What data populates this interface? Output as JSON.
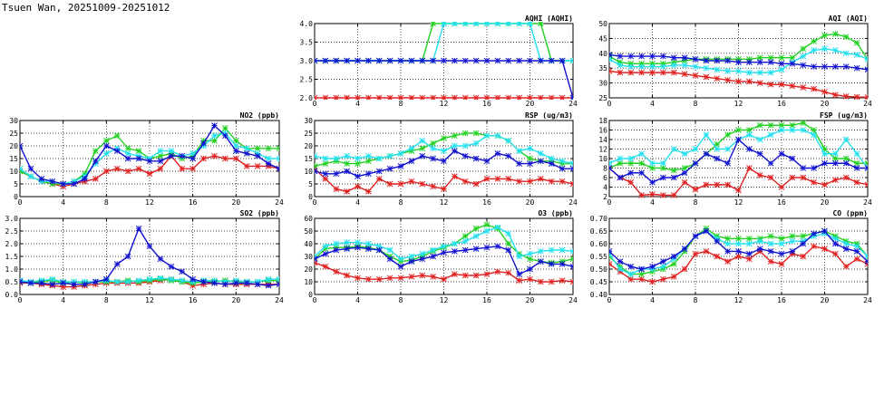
{
  "page": {
    "title": "Tsuen Wan, 20251009-20251012"
  },
  "palette": {
    "red": "#e02020",
    "blue": "#1010d0",
    "green": "#22d022",
    "cyan": "#22e0ee"
  },
  "chart_data": [
    {
      "id": "aqhi",
      "type": "line",
      "title": "AQHI (AQHI)",
      "xlim": [
        0,
        24
      ],
      "ylim": [
        2.0,
        4.0
      ],
      "xticks": [
        "0",
        "4",
        "8",
        "12",
        "16",
        "20",
        "24"
      ],
      "yticks": [
        "2.0",
        "2.5",
        "3.0",
        "3.5",
        "4.0"
      ],
      "grid": true,
      "series": [
        {
          "color": "red",
          "values": [
            2,
            2,
            2,
            2,
            2,
            2,
            2,
            2,
            2,
            2,
            2,
            2,
            2,
            2,
            2,
            2,
            2,
            2,
            2,
            2,
            2,
            2,
            2,
            2,
            2
          ]
        },
        {
          "color": "green",
          "values": [
            3,
            3,
            3,
            3,
            3,
            3,
            3,
            3,
            3,
            3,
            3,
            4,
            4,
            4,
            4,
            4,
            4,
            4,
            4,
            4,
            4,
            4,
            3,
            3,
            3
          ]
        },
        {
          "color": "cyan",
          "values": [
            3,
            3,
            3,
            3,
            3,
            3,
            3,
            3,
            3,
            3,
            3,
            3,
            4,
            4,
            4,
            4,
            4,
            4,
            4,
            4,
            4,
            3,
            3,
            3,
            3
          ]
        },
        {
          "color": "blue",
          "values": [
            3,
            3,
            3,
            3,
            3,
            3,
            3,
            3,
            3,
            3,
            3,
            3,
            3,
            3,
            3,
            3,
            3,
            3,
            3,
            3,
            3,
            3,
            3,
            3,
            2
          ]
        }
      ]
    },
    {
      "id": "aqi",
      "type": "line",
      "title": "AQI (AQI)",
      "xlim": [
        0,
        24
      ],
      "ylim": [
        25,
        50
      ],
      "xticks": [
        "0",
        "4",
        "8",
        "12",
        "16",
        "20",
        "24"
      ],
      "yticks": [
        "25",
        "30",
        "35",
        "40",
        "45",
        "50"
      ],
      "grid": true,
      "series": [
        {
          "color": "red",
          "values": [
            34,
            33.5,
            33.5,
            33.5,
            33.5,
            33.5,
            33.5,
            33,
            32.5,
            32,
            31.5,
            31,
            30.5,
            30.5,
            30,
            29.5,
            29.5,
            29,
            28.5,
            28,
            27,
            26,
            25.5,
            25.3,
            25.2
          ]
        },
        {
          "color": "green",
          "values": [
            39,
            37,
            36.5,
            36.5,
            36.5,
            36.5,
            37,
            37.5,
            38,
            38,
            38,
            38,
            38,
            38,
            38.5,
            38.5,
            38.5,
            38.5,
            41.5,
            44,
            46,
            46.5,
            45.5,
            43.5,
            38
          ]
        },
        {
          "color": "cyan",
          "values": [
            38,
            36,
            35.5,
            35.5,
            35.5,
            35.5,
            36,
            36,
            35.5,
            35,
            34.5,
            34,
            34,
            33.5,
            33.5,
            33.5,
            34.5,
            37,
            39,
            41,
            41.5,
            41,
            40,
            39.5,
            38
          ]
        },
        {
          "color": "blue",
          "values": [
            39.5,
            39,
            39,
            39,
            39,
            39,
            38.5,
            38.5,
            38,
            37.5,
            37.5,
            37.5,
            37,
            37,
            37,
            37,
            36.5,
            36.5,
            36,
            35.5,
            35.5,
            35.5,
            35.5,
            35,
            34.5
          ]
        }
      ]
    },
    {
      "id": "no2",
      "type": "line",
      "title": "NO2 (ppb)",
      "xlim": [
        0,
        24
      ],
      "ylim": [
        0,
        30
      ],
      "xticks": [
        "0",
        "4",
        "8",
        "12",
        "16",
        "20",
        "24"
      ],
      "yticks": [
        "0",
        "5",
        "10",
        "15",
        "20",
        "25",
        "30"
      ],
      "grid": true,
      "series": [
        {
          "color": "red",
          "values": [
            10,
            8,
            6,
            5,
            4,
            5,
            6,
            7,
            10,
            11,
            10,
            11,
            9,
            11,
            16,
            11,
            11,
            15,
            16,
            15,
            15,
            12,
            12,
            12,
            11
          ]
        },
        {
          "color": "green",
          "values": [
            10,
            8,
            6,
            5,
            5,
            6,
            9,
            18,
            22,
            24,
            19,
            18,
            15,
            16,
            17,
            15,
            16,
            22,
            22,
            27,
            22,
            19,
            19,
            19,
            19
          ]
        },
        {
          "color": "cyan",
          "values": [
            11,
            8,
            6,
            6,
            5,
            6,
            8,
            13,
            17,
            19,
            17,
            16,
            15,
            18,
            18,
            16,
            17,
            20,
            24,
            25,
            20,
            19,
            17,
            15,
            15
          ]
        },
        {
          "color": "blue",
          "values": [
            20,
            11,
            7,
            6,
            5,
            5,
            7,
            14,
            20,
            18,
            15,
            15,
            14,
            14,
            16,
            16,
            15,
            21,
            28,
            24,
            18,
            17,
            16,
            13,
            11
          ]
        }
      ]
    },
    {
      "id": "rsp",
      "type": "line",
      "title": "RSP (ug/m3)",
      "xlim": [
        0,
        24
      ],
      "ylim": [
        0,
        30
      ],
      "xticks": [
        "0",
        "4",
        "8",
        "12",
        "16",
        "20",
        "24"
      ],
      "yticks": [
        "0",
        "5",
        "10",
        "15",
        "20",
        "25",
        "30"
      ],
      "grid": true,
      "series": [
        {
          "color": "red",
          "values": [
            11,
            7,
            3,
            2,
            4,
            2,
            7,
            5,
            5,
            6,
            5,
            4,
            3,
            8,
            6,
            5,
            7,
            7,
            7,
            6,
            6,
            7,
            6,
            6,
            5
          ]
        },
        {
          "color": "green",
          "values": [
            12,
            13,
            14,
            13,
            13,
            14,
            15,
            16,
            17,
            18,
            19,
            21,
            23,
            24,
            25,
            25,
            24,
            24,
            22,
            18,
            15,
            14,
            14,
            13,
            13
          ]
        },
        {
          "color": "cyan",
          "values": [
            16,
            15,
            15,
            16,
            15,
            16,
            15,
            16,
            17,
            19,
            22,
            19,
            18,
            20,
            20,
            21,
            24,
            24,
            22,
            18,
            19,
            17,
            15,
            14,
            13
          ]
        },
        {
          "color": "blue",
          "values": [
            10,
            9,
            9,
            10,
            8,
            9,
            10,
            11,
            12,
            14,
            16,
            15,
            14,
            18,
            16,
            15,
            14,
            17,
            16,
            13,
            13,
            14,
            13,
            11,
            11
          ]
        }
      ]
    },
    {
      "id": "fsp",
      "type": "line",
      "title": "FSP (ug/m3)",
      "xlim": [
        0,
        24
      ],
      "ylim": [
        2,
        18
      ],
      "xticks": [
        "0",
        "4",
        "8",
        "12",
        "16",
        "20",
        "24"
      ],
      "yticks": [
        "2",
        "4",
        "6",
        "8",
        "10",
        "12",
        "14",
        "16",
        "18"
      ],
      "grid": true,
      "series": [
        {
          "color": "red",
          "values": [
            8,
            6,
            5,
            2.3,
            2.5,
            2.3,
            2.3,
            5,
            3.5,
            4.5,
            4.5,
            4.5,
            3.3,
            8,
            6.5,
            6,
            4,
            6,
            6,
            5,
            4.5,
            5.5,
            6,
            5,
            4.5
          ]
        },
        {
          "color": "green",
          "values": [
            8,
            9,
            9,
            9,
            8,
            8,
            7.5,
            8,
            9,
            11,
            13,
            15,
            16,
            16,
            17,
            17,
            17,
            17,
            17.5,
            16,
            12,
            10,
            10,
            9,
            9
          ]
        },
        {
          "color": "cyan",
          "values": [
            9,
            10,
            10,
            11,
            9,
            9,
            12,
            11,
            12,
            15,
            12,
            12,
            14,
            15,
            14,
            15,
            16,
            16,
            16,
            15,
            11,
            11,
            14,
            11,
            8
          ]
        },
        {
          "color": "blue",
          "values": [
            8,
            6,
            7,
            7,
            5,
            6,
            6,
            7,
            9,
            11,
            10,
            9,
            14,
            12,
            11,
            9,
            11,
            10,
            8,
            8,
            9,
            9,
            9,
            8,
            8
          ]
        }
      ]
    },
    {
      "id": "so2",
      "type": "line",
      "title": "SO2 (ppb)",
      "xlim": [
        0,
        24
      ],
      "ylim": [
        0.0,
        3.0
      ],
      "xticks": [
        "0",
        "4",
        "8",
        "12",
        "16",
        "20",
        "24"
      ],
      "yticks": [
        "0.0",
        "0.5",
        "1.0",
        "1.5",
        "2.0",
        "2.5",
        "3.0"
      ],
      "grid": true,
      "series": [
        {
          "color": "red",
          "values": [
            0.45,
            0.45,
            0.4,
            0.35,
            0.3,
            0.3,
            0.35,
            0.4,
            0.45,
            0.45,
            0.45,
            0.45,
            0.5,
            0.55,
            0.6,
            0.5,
            0.35,
            0.4,
            0.45,
            0.4,
            0.4,
            0.4,
            0.4,
            0.4,
            0.4
          ]
        },
        {
          "color": "green",
          "values": [
            0.5,
            0.45,
            0.5,
            0.55,
            0.45,
            0.5,
            0.45,
            0.5,
            0.5,
            0.5,
            0.55,
            0.5,
            0.55,
            0.6,
            0.55,
            0.5,
            0.45,
            0.5,
            0.5,
            0.55,
            0.5,
            0.5,
            0.5,
            0.55,
            0.55
          ]
        },
        {
          "color": "cyan",
          "values": [
            0.55,
            0.5,
            0.55,
            0.6,
            0.5,
            0.5,
            0.5,
            0.5,
            0.55,
            0.5,
            0.5,
            0.55,
            0.6,
            0.65,
            0.6,
            0.55,
            0.5,
            0.55,
            0.55,
            0.5,
            0.55,
            0.5,
            0.5,
            0.6,
            0.6
          ]
        },
        {
          "color": "blue",
          "values": [
            0.5,
            0.45,
            0.45,
            0.4,
            0.45,
            0.4,
            0.4,
            0.5,
            0.6,
            1.2,
            1.5,
            2.6,
            1.9,
            1.4,
            1.1,
            0.9,
            0.6,
            0.5,
            0.45,
            0.4,
            0.45,
            0.45,
            0.4,
            0.35,
            0.4
          ]
        }
      ]
    },
    {
      "id": "o3",
      "type": "line",
      "title": "O3 (ppb)",
      "xlim": [
        0,
        24
      ],
      "ylim": [
        0,
        60
      ],
      "xticks": [
        "0",
        "4",
        "8",
        "12",
        "16",
        "20",
        "24"
      ],
      "yticks": [
        "0",
        "10",
        "20",
        "30",
        "40",
        "50",
        "60"
      ],
      "grid": true,
      "series": [
        {
          "color": "red",
          "values": [
            25,
            22,
            18,
            15,
            13,
            12,
            12,
            13,
            13,
            14,
            15,
            14,
            12,
            16,
            15,
            15,
            16,
            18,
            17,
            11,
            12,
            10,
            10,
            11,
            10
          ]
        },
        {
          "color": "green",
          "values": [
            28,
            36,
            37,
            37,
            38,
            37,
            35,
            30,
            26,
            27,
            30,
            34,
            37,
            40,
            46,
            52,
            55,
            52,
            40,
            32,
            28,
            26,
            25,
            26,
            28
          ]
        },
        {
          "color": "cyan",
          "values": [
            30,
            38,
            40,
            41,
            41,
            40,
            38,
            35,
            28,
            30,
            32,
            35,
            38,
            40,
            42,
            46,
            50,
            53,
            48,
            30,
            32,
            34,
            35,
            35,
            34
          ]
        },
        {
          "color": "blue",
          "values": [
            28,
            32,
            35,
            36,
            37,
            36,
            35,
            28,
            22,
            26,
            28,
            30,
            33,
            34,
            35,
            36,
            37,
            38,
            35,
            16,
            20,
            26,
            24,
            24,
            22
          ]
        }
      ]
    },
    {
      "id": "co",
      "type": "line",
      "title": "CO (ppm)",
      "xlim": [
        0,
        24
      ],
      "ylim": [
        0.4,
        0.7
      ],
      "xticks": [
        "0",
        "4",
        "8",
        "12",
        "16",
        "20",
        "24"
      ],
      "yticks": [
        "0.40",
        "0.45",
        "0.50",
        "0.55",
        "0.60",
        "0.65",
        "0.70"
      ],
      "grid": true,
      "series": [
        {
          "color": "red",
          "values": [
            0.52,
            0.49,
            0.46,
            0.46,
            0.45,
            0.46,
            0.47,
            0.5,
            0.56,
            0.57,
            0.55,
            0.53,
            0.55,
            0.54,
            0.57,
            0.53,
            0.52,
            0.56,
            0.55,
            0.59,
            0.58,
            0.56,
            0.51,
            0.54,
            0.52
          ]
        },
        {
          "color": "green",
          "values": [
            0.55,
            0.51,
            0.48,
            0.48,
            0.49,
            0.5,
            0.52,
            0.57,
            0.63,
            0.66,
            0.63,
            0.62,
            0.62,
            0.62,
            0.62,
            0.63,
            0.62,
            0.63,
            0.63,
            0.64,
            0.65,
            0.63,
            0.61,
            0.6,
            0.55
          ]
        },
        {
          "color": "cyan",
          "values": [
            0.56,
            0.5,
            0.48,
            0.5,
            0.5,
            0.51,
            0.54,
            0.58,
            0.63,
            0.65,
            0.62,
            0.6,
            0.6,
            0.6,
            0.61,
            0.6,
            0.6,
            0.61,
            0.61,
            0.63,
            0.64,
            0.62,
            0.6,
            0.59,
            0.55
          ]
        },
        {
          "color": "blue",
          "values": [
            0.57,
            0.53,
            0.51,
            0.5,
            0.51,
            0.53,
            0.55,
            0.58,
            0.63,
            0.65,
            0.61,
            0.57,
            0.57,
            0.56,
            0.58,
            0.57,
            0.56,
            0.57,
            0.6,
            0.64,
            0.65,
            0.6,
            0.58,
            0.57,
            0.53
          ]
        }
      ]
    }
  ]
}
